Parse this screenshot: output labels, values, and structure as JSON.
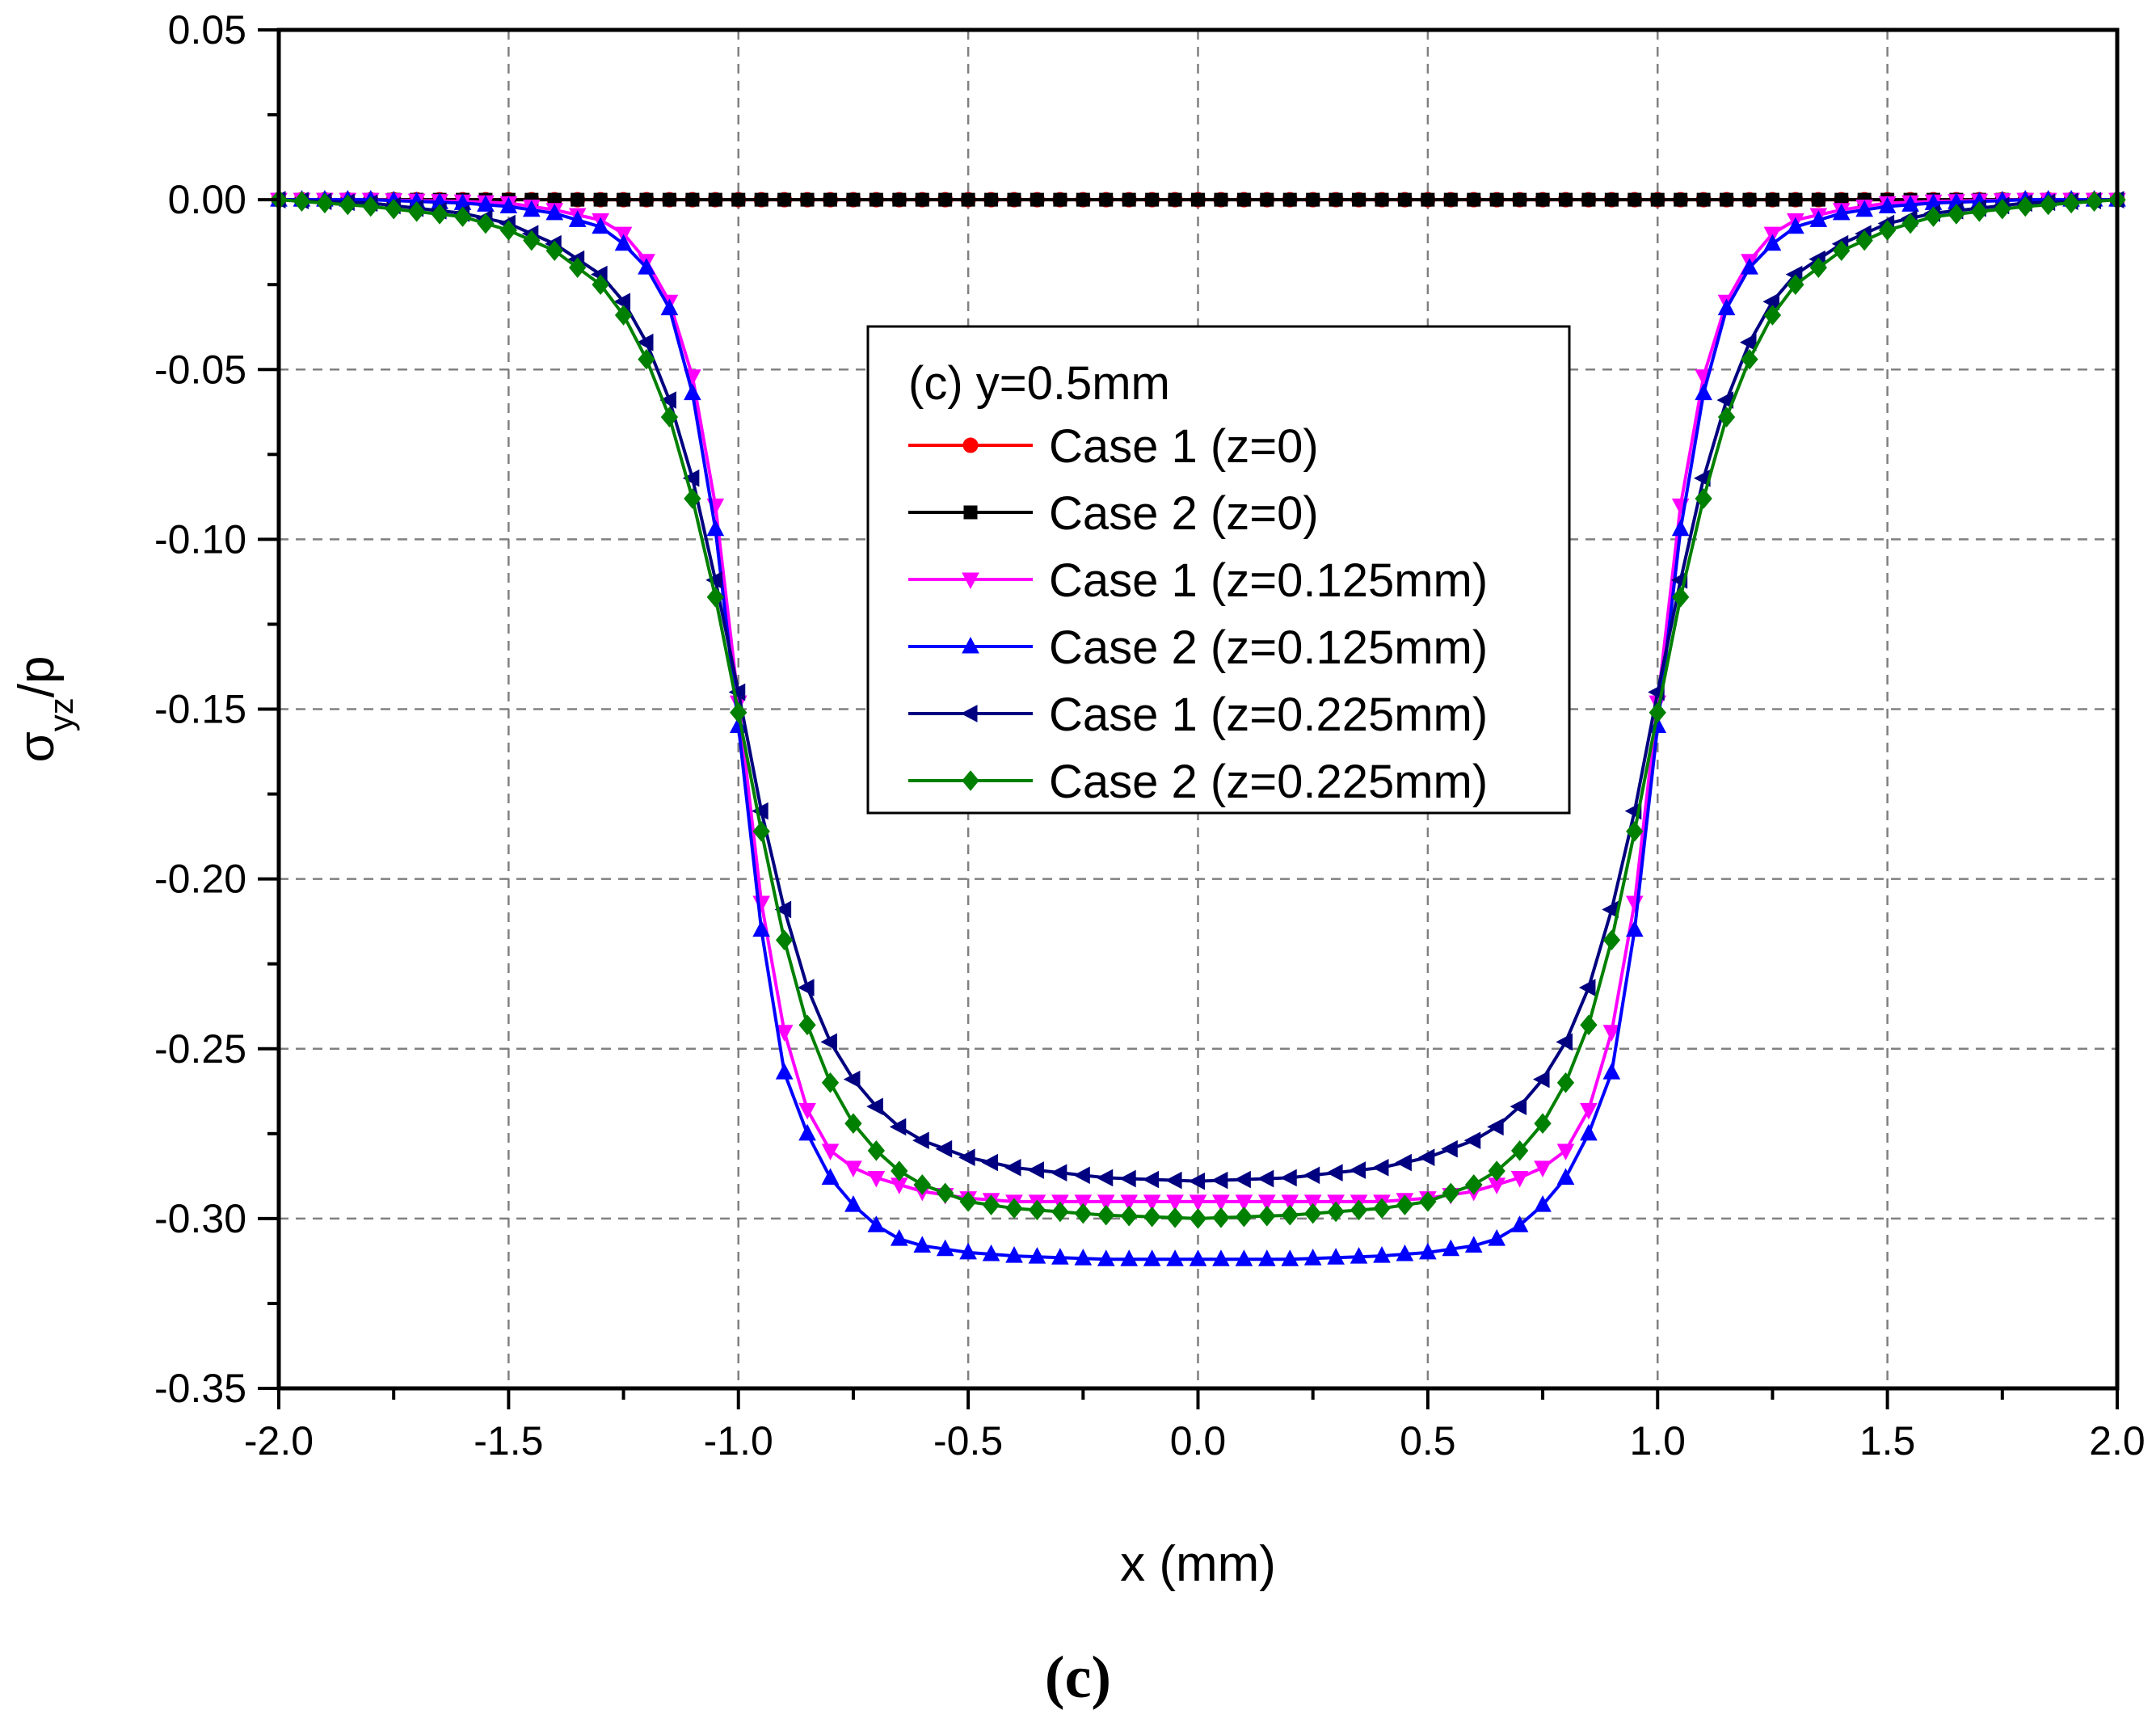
{
  "chart_data": {
    "type": "line",
    "title": "(c) y=0.5mm",
    "xlabel": "x (mm)",
    "ylabel": {
      "base": "σ",
      "sub": "yz",
      "suffix": "/p"
    },
    "panel_label": "(c)",
    "xlim": [
      -2.0,
      2.0
    ],
    "ylim": [
      -0.35,
      0.05
    ],
    "x_ticks": [
      -2.0,
      -1.5,
      -1.0,
      -0.5,
      0.0,
      0.5,
      1.0,
      1.5,
      2.0
    ],
    "x_tick_labels": [
      "-2.0",
      "-1.5",
      "-1.0",
      "-0.5",
      "0.0",
      "0.5",
      "1.0",
      "1.5",
      "2.0"
    ],
    "y_ticks": [
      0.05,
      0.0,
      -0.05,
      -0.1,
      -0.15,
      -0.2,
      -0.25,
      -0.3,
      -0.35
    ],
    "y_tick_labels": [
      "0.05",
      "0.00",
      "-0.05",
      "-0.10",
      "-0.15",
      "-0.20",
      "-0.25",
      "-0.30",
      "-0.35"
    ],
    "grid": true,
    "legend_position": "upper-center",
    "marker_step": 0.05,
    "series": [
      {
        "name": "Case 1 (z=0)",
        "color": "#ff0000",
        "marker": "circle",
        "x": [
          -2.0,
          2.0
        ],
        "y": [
          0.0,
          0.0
        ]
      },
      {
        "name": "Case 2 (z=0)",
        "color": "#000000",
        "marker": "square",
        "x": [
          -2.0,
          2.0
        ],
        "y": [
          0.0,
          0.0
        ]
      },
      {
        "name": "Case 1 (z=0.125mm)",
        "color": "#ff00ff",
        "marker": "triangle-down",
        "x": [
          0,
          0.2,
          0.4,
          0.5,
          0.6,
          0.7,
          0.75,
          0.8,
          0.85,
          0.9,
          0.95,
          1.0,
          1.05,
          1.1,
          1.15,
          1.2,
          1.25,
          1.3,
          1.4,
          1.5,
          1.6,
          1.8,
          2.0
        ],
        "y": [
          -0.295,
          -0.295,
          -0.295,
          -0.294,
          -0.292,
          -0.288,
          -0.285,
          -0.28,
          -0.268,
          -0.245,
          -0.207,
          -0.148,
          -0.09,
          -0.052,
          -0.03,
          -0.018,
          -0.01,
          -0.006,
          -0.003,
          -0.001,
          -0.0005,
          0.0,
          0.0
        ]
      },
      {
        "name": "Case 2 (z=0.125mm)",
        "color": "#0000ff",
        "marker": "triangle-up",
        "x": [
          0,
          0.2,
          0.4,
          0.5,
          0.6,
          0.65,
          0.7,
          0.75,
          0.8,
          0.85,
          0.9,
          0.95,
          1.0,
          1.05,
          1.1,
          1.15,
          1.2,
          1.25,
          1.3,
          1.4,
          1.5,
          1.6,
          1.8,
          2.0
        ],
        "y": [
          -0.312,
          -0.312,
          -0.311,
          -0.31,
          -0.308,
          -0.306,
          -0.302,
          -0.296,
          -0.288,
          -0.275,
          -0.257,
          -0.215,
          -0.155,
          -0.097,
          -0.057,
          -0.032,
          -0.02,
          -0.013,
          -0.008,
          -0.004,
          -0.002,
          -0.001,
          0.0,
          0.0
        ]
      },
      {
        "name": "Case 1 (z=0.225mm)",
        "color": "#000080",
        "marker": "triangle-left",
        "x": [
          0,
          0.2,
          0.4,
          0.5,
          0.6,
          0.65,
          0.7,
          0.75,
          0.8,
          0.85,
          0.9,
          0.95,
          1.0,
          1.05,
          1.1,
          1.15,
          1.2,
          1.25,
          1.3,
          1.4,
          1.5,
          1.6,
          1.8,
          2.0
        ],
        "y": [
          -0.289,
          -0.288,
          -0.285,
          -0.282,
          -0.277,
          -0.273,
          -0.267,
          -0.259,
          -0.248,
          -0.232,
          -0.209,
          -0.18,
          -0.145,
          -0.112,
          -0.082,
          -0.059,
          -0.042,
          -0.03,
          -0.022,
          -0.013,
          -0.007,
          -0.004,
          -0.001,
          0.0
        ]
      },
      {
        "name": "Case 2 (z=0.225mm)",
        "color": "#008000",
        "marker": "diamond",
        "x": [
          0,
          0.2,
          0.4,
          0.5,
          0.6,
          0.65,
          0.7,
          0.75,
          0.8,
          0.85,
          0.9,
          0.95,
          1.0,
          1.05,
          1.1,
          1.15,
          1.2,
          1.25,
          1.3,
          1.4,
          1.5,
          1.6,
          1.8,
          2.0
        ],
        "y": [
          -0.3,
          -0.299,
          -0.297,
          -0.295,
          -0.29,
          -0.286,
          -0.28,
          -0.272,
          -0.26,
          -0.243,
          -0.218,
          -0.186,
          -0.151,
          -0.117,
          -0.088,
          -0.064,
          -0.047,
          -0.034,
          -0.025,
          -0.015,
          -0.009,
          -0.005,
          -0.002,
          0.0
        ]
      }
    ]
  }
}
